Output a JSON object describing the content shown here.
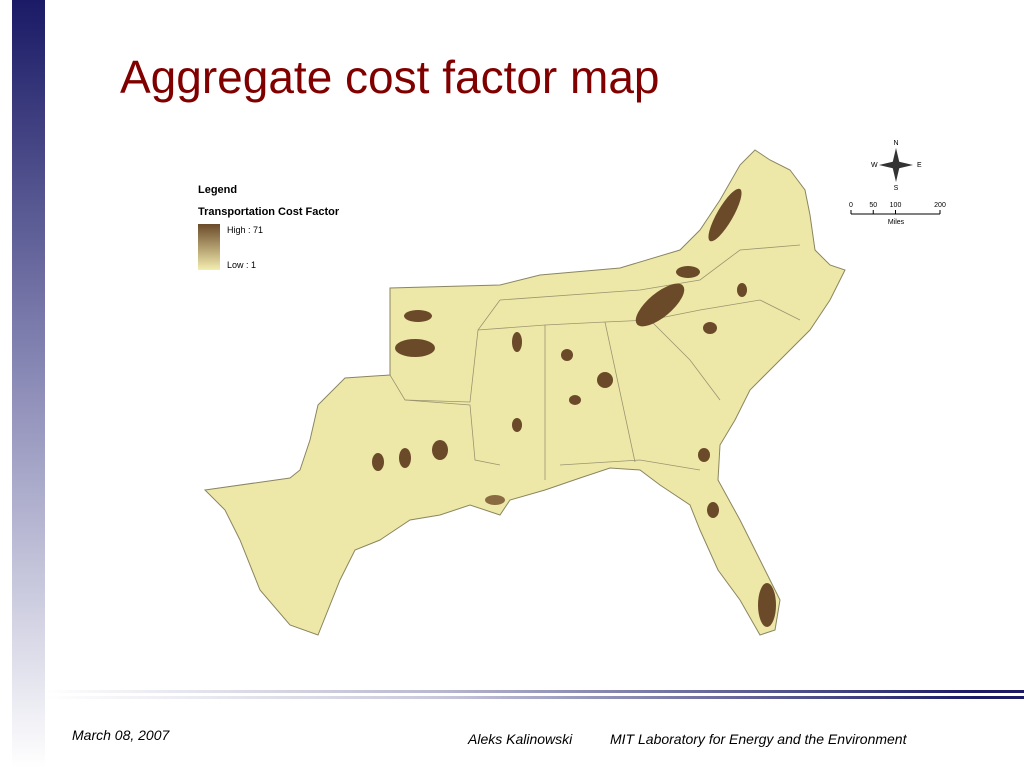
{
  "header": {
    "title": "Aggregate cost factor map"
  },
  "legend": {
    "title": "Legend",
    "subtitle": "Transportation Cost Factor",
    "high": "High : 71",
    "low": "Low : 1"
  },
  "compass": {
    "n": "N",
    "s": "S",
    "e": "E",
    "w": "W"
  },
  "scale": {
    "ticks": [
      0,
      50,
      100,
      200
    ],
    "unit": "Miles"
  },
  "footer": {
    "date": "March 08, 2007",
    "author": "Aleks Kalinowski",
    "org": "MIT Laboratory for Energy and the Environment"
  }
}
